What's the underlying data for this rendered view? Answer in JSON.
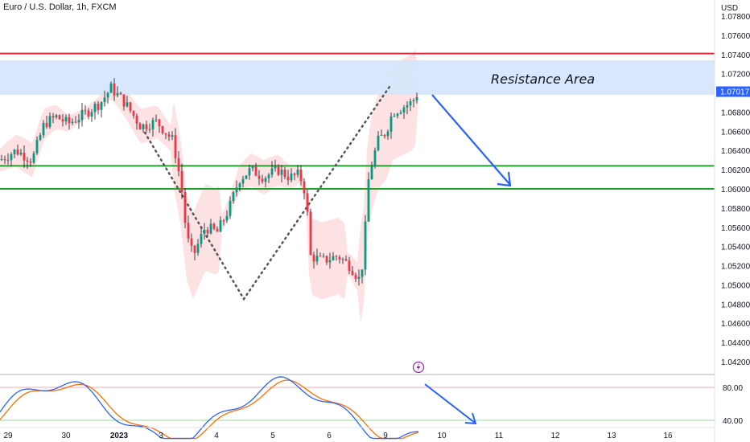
{
  "header": {
    "title": "Euro / U.S. Dollar, 1h, FXCM"
  },
  "chart_data": {
    "type": "candlestick",
    "currency": "USD",
    "y_ticks": [
      "1.07800",
      "1.07600",
      "1.07400",
      "1.07200",
      "1.07000",
      "1.06800",
      "1.06600",
      "1.06400",
      "1.06200",
      "1.06000",
      "1.05800",
      "1.05600",
      "1.05400",
      "1.05200",
      "1.05000",
      "1.04800",
      "1.04600",
      "1.04400",
      "1.04200"
    ],
    "y_tick_values": [
      1.078,
      1.076,
      1.074,
      1.072,
      1.07,
      1.068,
      1.066,
      1.064,
      1.062,
      1.06,
      1.058,
      1.056,
      1.054,
      1.052,
      1.05,
      1.048,
      1.046,
      1.044,
      1.042
    ],
    "ylim": [
      1.0412,
      1.0792
    ],
    "x_ticks": [
      "29",
      "30",
      "2023",
      "3",
      "4",
      "5",
      "6",
      "9",
      "10",
      "11",
      "12",
      "13",
      "16"
    ],
    "current_price": "1.07017",
    "annotation": "Resistance Area",
    "resistance_zone": [
      1.0698,
      1.0734
    ],
    "resistance_line": 1.0741,
    "support_lines": [
      1.0624,
      1.06
    ],
    "oscillator": {
      "ticks": [
        "80.00",
        "40.00"
      ],
      "tick_values": [
        80,
        40
      ],
      "ylim": [
        10,
        110
      ]
    },
    "colors": {
      "up": "#089981",
      "down": "#f23645",
      "resistance_line": "#e0283c",
      "support_line": "#1fa32a",
      "zone": "#d6e6fb",
      "arrow": "#2962ff",
      "price_tag": "#2962ff",
      "osc_fast": "#2962ff",
      "osc_slow": "#ff6d00"
    }
  }
}
